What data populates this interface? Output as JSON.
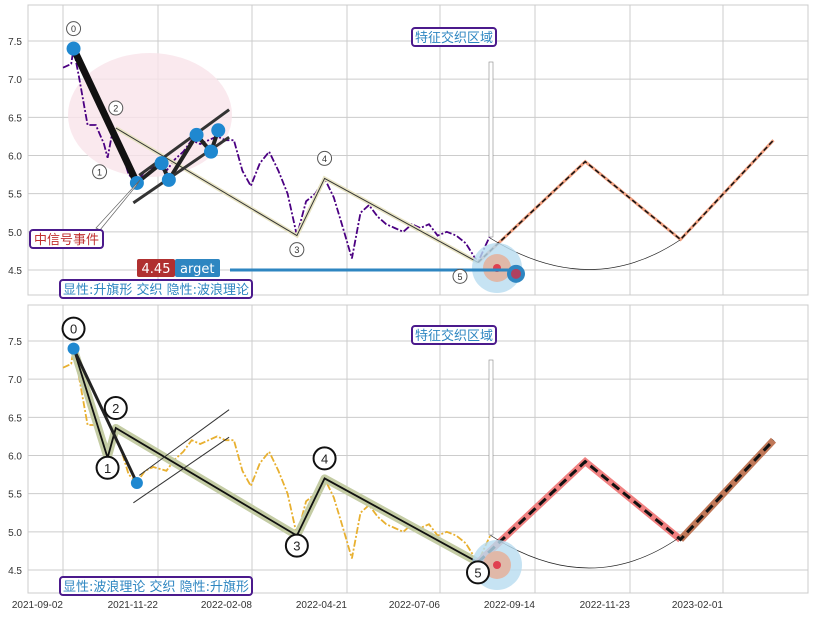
{
  "chart_data": [
    {
      "type": "line",
      "panel": "top",
      "ylim": [
        4.25,
        7.95
      ],
      "yticks": [
        "4.5",
        "5.0",
        "5.5",
        "6.0",
        "6.5",
        "7.0",
        "7.5"
      ],
      "grid": true,
      "colors": {
        "price": "#4b0082",
        "wave": "#000000",
        "wave_band": "#e8e4c4",
        "flag_points": "#1f88d0",
        "projection": "#f0a080",
        "highlight": "#f9e4ea",
        "target_line": "#2e86c1"
      },
      "price_series": [
        [
          "2021-09-02",
          7.15
        ],
        [
          "2021-09-09",
          7.2
        ],
        [
          "2021-09-11",
          7.4
        ],
        [
          "2021-09-16",
          7.0
        ],
        [
          "2021-09-23",
          6.4
        ],
        [
          "2021-09-30",
          6.4
        ],
        [
          "2021-10-07",
          6.15
        ],
        [
          "2021-10-10",
          5.97
        ],
        [
          "2021-10-14",
          6.3
        ],
        [
          "2021-10-21",
          6.1
        ],
        [
          "2021-10-28",
          5.75
        ],
        [
          "2021-11-04",
          5.65
        ],
        [
          "2021-11-11",
          5.8
        ],
        [
          "2021-11-18",
          5.85
        ],
        [
          "2021-11-29",
          5.8
        ],
        [
          "2021-12-06",
          5.95
        ],
        [
          "2021-12-13",
          6.05
        ],
        [
          "2021-12-20",
          6.2
        ],
        [
          "2021-12-27",
          6.15
        ],
        [
          "2022-01-03",
          6.2
        ],
        [
          "2022-01-10",
          6.25
        ],
        [
          "2022-01-17",
          6.2
        ],
        [
          "2022-01-24",
          6.2
        ],
        [
          "2022-01-31",
          5.8
        ],
        [
          "2022-02-07",
          5.6
        ],
        [
          "2022-02-14",
          5.9
        ],
        [
          "2022-02-21",
          6.05
        ],
        [
          "2022-02-28",
          5.8
        ],
        [
          "2022-03-07",
          5.5
        ],
        [
          "2022-03-14",
          4.95
        ],
        [
          "2022-03-21",
          5.4
        ],
        [
          "2022-03-28",
          5.5
        ],
        [
          "2022-04-04",
          5.7
        ],
        [
          "2022-04-11",
          5.45
        ],
        [
          "2022-04-18",
          5.05
        ],
        [
          "2022-04-25",
          4.65
        ],
        [
          "2022-05-02",
          5.25
        ],
        [
          "2022-05-09",
          5.35
        ],
        [
          "2022-05-16",
          5.2
        ],
        [
          "2022-05-23",
          5.1
        ],
        [
          "2022-05-30",
          5.05
        ],
        [
          "2022-06-06",
          5.0
        ],
        [
          "2022-06-13",
          5.1
        ],
        [
          "2022-06-20",
          5.05
        ],
        [
          "2022-06-27",
          5.1
        ],
        [
          "2022-07-04",
          4.95
        ],
        [
          "2022-07-11",
          5.0
        ],
        [
          "2022-07-18",
          4.95
        ],
        [
          "2022-07-25",
          4.85
        ],
        [
          "2022-08-01",
          4.65
        ],
        [
          "2022-08-03",
          4.6
        ],
        [
          "2022-08-08",
          4.8
        ],
        [
          "2022-08-12",
          4.95
        ]
      ],
      "wave_points": [
        {
          "label": "0",
          "date": "2021-09-11",
          "value": 7.4
        },
        {
          "label": "1",
          "date": "2021-10-10",
          "value": 5.97
        },
        {
          "label": "2",
          "date": "2021-10-17",
          "value": 6.36
        },
        {
          "label": "3",
          "date": "2022-03-14",
          "value": 4.95
        },
        {
          "label": "4",
          "date": "2022-04-04",
          "value": 5.7
        },
        {
          "label": "5",
          "date": "2022-08-03",
          "value": 4.6
        }
      ],
      "flag_points": [
        [
          "2021-11-04",
          5.64
        ],
        [
          "2021-11-25",
          5.9
        ],
        [
          "2021-12-01",
          5.68
        ],
        [
          "2021-12-24",
          6.27
        ],
        [
          "2022-01-05",
          6.05
        ],
        [
          "2022-01-11",
          6.33
        ]
      ],
      "flag_channel": {
        "upper": [
          [
            "2021-11-06",
            5.74
          ],
          [
            "2022-01-20",
            6.6
          ]
        ],
        "lower": [
          [
            "2021-11-01",
            5.38
          ],
          [
            "2022-01-20",
            6.24
          ]
        ]
      },
      "projection": [
        [
          "2022-08-03",
          4.6
        ],
        [
          "2022-10-21",
          5.92
        ],
        [
          "2022-12-31",
          4.9
        ],
        [
          "2023-03-11",
          6.2
        ]
      ],
      "target": {
        "date": "2022-08-31",
        "value": 4.45,
        "value_label": "4.45",
        "label": "arget"
      },
      "annotations": {
        "zone": "特征交织区域",
        "signal": "中信号事件",
        "pattern": "显性:升旗形 交织 隐性:波浪理论"
      }
    },
    {
      "type": "line",
      "panel": "bottom",
      "ylim": [
        4.25,
        7.95
      ],
      "yticks": [
        "4.5",
        "5.0",
        "5.5",
        "6.0",
        "6.5",
        "7.0",
        "7.5"
      ],
      "grid": true,
      "colors": {
        "price": "#e8b030",
        "wave": "#000000",
        "wave_band": "#c4cca4",
        "projection_1": "#f08080",
        "projection_2": "#c07858"
      },
      "xticks": [
        "2021-09-02",
        "2021-11-22",
        "2022-02-08",
        "2022-04-21",
        "2022-07-06",
        "2022-09-14",
        "2022-11-23",
        "2023-02-01"
      ],
      "annotations": {
        "zone": "特征交织区域",
        "pattern": "显性:波浪理论 交织 隐性:升旗形"
      }
    }
  ]
}
